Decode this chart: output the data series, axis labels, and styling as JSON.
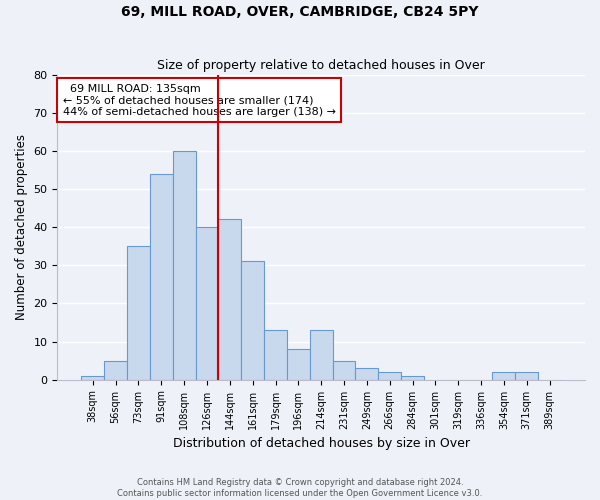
{
  "title": "69, MILL ROAD, OVER, CAMBRIDGE, CB24 5PY",
  "subtitle": "Size of property relative to detached houses in Over",
  "xlabel": "Distribution of detached houses by size in Over",
  "ylabel": "Number of detached properties",
  "bar_color": "#c8d9ee",
  "bar_edge_color": "#6699cc",
  "categories": [
    "38sqm",
    "56sqm",
    "73sqm",
    "91sqm",
    "108sqm",
    "126sqm",
    "144sqm",
    "161sqm",
    "179sqm",
    "196sqm",
    "214sqm",
    "231sqm",
    "249sqm",
    "266sqm",
    "284sqm",
    "301sqm",
    "319sqm",
    "336sqm",
    "354sqm",
    "371sqm",
    "389sqm"
  ],
  "values": [
    1,
    5,
    35,
    54,
    60,
    40,
    42,
    31,
    13,
    8,
    13,
    5,
    3,
    2,
    1,
    0,
    0,
    0,
    2,
    2,
    0
  ],
  "ylim": [
    0,
    80
  ],
  "yticks": [
    0,
    10,
    20,
    30,
    40,
    50,
    60,
    70,
    80
  ],
  "property_line_x": 5.5,
  "annotation_title": "69 MILL ROAD: 135sqm",
  "annotation_line1": "← 55% of detached houses are smaller (174)",
  "annotation_line2": "44% of semi-detached houses are larger (138) →",
  "annotation_box_color": "#ffffff",
  "annotation_box_edge_color": "#cc0000",
  "property_line_color": "#cc0000",
  "footer1": "Contains HM Land Registry data © Crown copyright and database right 2024.",
  "footer2": "Contains public sector information licensed under the Open Government Licence v3.0.",
  "background_color": "#eef2f8",
  "plot_bg_color": "#eef2f8",
  "grid_color": "#ffffff",
  "title_fontsize": 10,
  "subtitle_fontsize": 9
}
